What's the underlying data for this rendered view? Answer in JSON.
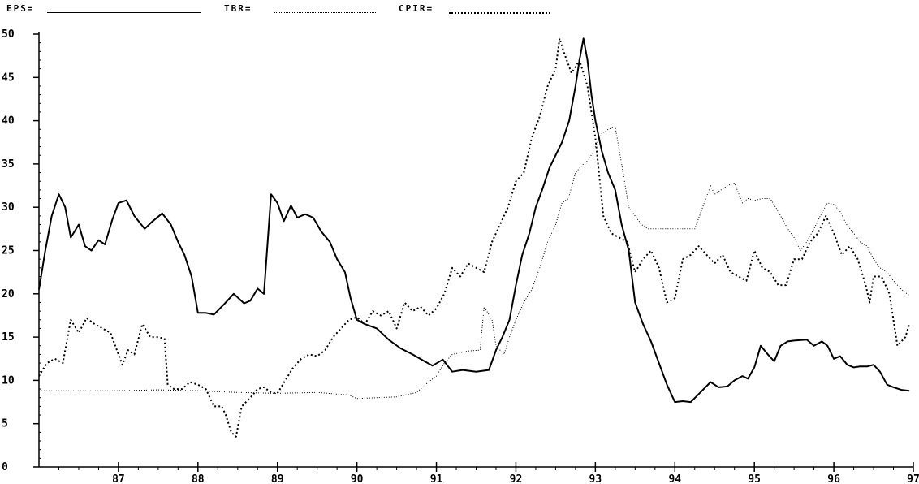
{
  "legend": {
    "eps": "EPS=",
    "tbr": "TBR=",
    "cpir": "CPIR="
  },
  "chart_data": {
    "type": "line",
    "xlim": [
      86,
      97
    ],
    "ylim": [
      0,
      50
    ],
    "x_ticks": [
      "87",
      "88",
      "89",
      "90",
      "91",
      "92",
      "93",
      "94",
      "95",
      "96",
      "97"
    ],
    "y_ticks": [
      "0",
      "5",
      "10",
      "15",
      "20",
      "25",
      "30",
      "35",
      "40",
      "45",
      "50"
    ],
    "series": [
      {
        "name": "EPS",
        "style": "solid",
        "points": [
          [
            86.0,
            20.5
          ],
          [
            86.08,
            25
          ],
          [
            86.16,
            29
          ],
          [
            86.25,
            31.5
          ],
          [
            86.33,
            30
          ],
          [
            86.4,
            26.5
          ],
          [
            86.5,
            28
          ],
          [
            86.58,
            25.5
          ],
          [
            86.66,
            25
          ],
          [
            86.75,
            26.2
          ],
          [
            86.83,
            25.7
          ],
          [
            86.92,
            28.5
          ],
          [
            87.0,
            30.5
          ],
          [
            87.1,
            30.8
          ],
          [
            87.2,
            29
          ],
          [
            87.33,
            27.5
          ],
          [
            87.42,
            28.3
          ],
          [
            87.55,
            29.3
          ],
          [
            87.66,
            28
          ],
          [
            87.75,
            26
          ],
          [
            87.83,
            24.5
          ],
          [
            87.92,
            22
          ],
          [
            88.0,
            17.8
          ],
          [
            88.1,
            17.8
          ],
          [
            88.2,
            17.6
          ],
          [
            88.33,
            18.8
          ],
          [
            88.45,
            20
          ],
          [
            88.58,
            18.9
          ],
          [
            88.66,
            19.2
          ],
          [
            88.75,
            20.6
          ],
          [
            88.83,
            20
          ],
          [
            88.92,
            31.5
          ],
          [
            89.0,
            30.5
          ],
          [
            89.08,
            28.4
          ],
          [
            89.17,
            30.2
          ],
          [
            89.25,
            28.8
          ],
          [
            89.35,
            29.2
          ],
          [
            89.45,
            28.8
          ],
          [
            89.55,
            27.2
          ],
          [
            89.66,
            26
          ],
          [
            89.75,
            24
          ],
          [
            89.85,
            22.5
          ],
          [
            89.92,
            19.5
          ],
          [
            90.0,
            17
          ],
          [
            90.1,
            16.5
          ],
          [
            90.25,
            16
          ],
          [
            90.4,
            14.7
          ],
          [
            90.55,
            13.7
          ],
          [
            90.7,
            13
          ],
          [
            90.85,
            12.2
          ],
          [
            90.95,
            11.7
          ],
          [
            91.08,
            12.4
          ],
          [
            91.2,
            11
          ],
          [
            91.33,
            11.2
          ],
          [
            91.5,
            11
          ],
          [
            91.66,
            11.2
          ],
          [
            91.75,
            13.5
          ],
          [
            91.83,
            15
          ],
          [
            91.92,
            17
          ],
          [
            92.0,
            21
          ],
          [
            92.08,
            24.5
          ],
          [
            92.17,
            27
          ],
          [
            92.25,
            30
          ],
          [
            92.33,
            32
          ],
          [
            92.42,
            34.5
          ],
          [
            92.5,
            36
          ],
          [
            92.58,
            37.5
          ],
          [
            92.67,
            40
          ],
          [
            92.75,
            44
          ],
          [
            92.8,
            47
          ],
          [
            92.85,
            49.5
          ],
          [
            92.9,
            47
          ],
          [
            92.95,
            43
          ],
          [
            93.0,
            40
          ],
          [
            93.08,
            36.5
          ],
          [
            93.16,
            34
          ],
          [
            93.25,
            32
          ],
          [
            93.33,
            28
          ],
          [
            93.42,
            25
          ],
          [
            93.5,
            19
          ],
          [
            93.6,
            16.5
          ],
          [
            93.7,
            14.5
          ],
          [
            93.8,
            12
          ],
          [
            93.9,
            9.5
          ],
          [
            94.0,
            7.5
          ],
          [
            94.1,
            7.6
          ],
          [
            94.2,
            7.5
          ],
          [
            94.33,
            8.7
          ],
          [
            94.45,
            9.8
          ],
          [
            94.55,
            9.2
          ],
          [
            94.66,
            9.3
          ],
          [
            94.75,
            10
          ],
          [
            94.85,
            10.5
          ],
          [
            94.92,
            10.2
          ],
          [
            95.0,
            11.5
          ],
          [
            95.08,
            14
          ],
          [
            95.17,
            13
          ],
          [
            95.25,
            12.2
          ],
          [
            95.33,
            14
          ],
          [
            95.42,
            14.5
          ],
          [
            95.5,
            14.6
          ],
          [
            95.66,
            14.7
          ],
          [
            95.75,
            14
          ],
          [
            95.85,
            14.5
          ],
          [
            95.92,
            14
          ],
          [
            96.0,
            12.5
          ],
          [
            96.08,
            12.8
          ],
          [
            96.17,
            11.8
          ],
          [
            96.25,
            11.5
          ],
          [
            96.33,
            11.6
          ],
          [
            96.42,
            11.6
          ],
          [
            96.5,
            11.8
          ],
          [
            96.58,
            11
          ],
          [
            96.67,
            9.5
          ],
          [
            96.75,
            9.2
          ],
          [
            96.85,
            8.9
          ],
          [
            96.95,
            8.8
          ]
        ]
      },
      {
        "name": "TBR",
        "style": "fine-dotted",
        "points": [
          [
            86.0,
            8.8
          ],
          [
            86.5,
            8.8
          ],
          [
            87.0,
            8.8
          ],
          [
            87.5,
            8.9
          ],
          [
            88.0,
            8.8
          ],
          [
            88.5,
            8.6
          ],
          [
            89.0,
            8.5
          ],
          [
            89.5,
            8.6
          ],
          [
            89.9,
            8.3
          ],
          [
            90.0,
            7.9
          ],
          [
            90.5,
            8.1
          ],
          [
            90.75,
            8.6
          ],
          [
            90.9,
            9.8
          ],
          [
            91.0,
            10.5
          ],
          [
            91.1,
            12
          ],
          [
            91.2,
            13
          ],
          [
            91.4,
            13.4
          ],
          [
            91.55,
            13.5
          ],
          [
            91.6,
            18.5
          ],
          [
            91.7,
            17
          ],
          [
            91.75,
            14
          ],
          [
            91.85,
            13
          ],
          [
            91.92,
            15
          ],
          [
            92.0,
            17
          ],
          [
            92.1,
            19
          ],
          [
            92.2,
            20.5
          ],
          [
            92.3,
            23
          ],
          [
            92.4,
            26
          ],
          [
            92.5,
            28
          ],
          [
            92.58,
            30.5
          ],
          [
            92.66,
            31
          ],
          [
            92.75,
            34
          ],
          [
            92.85,
            35
          ],
          [
            92.92,
            35.5
          ],
          [
            93.0,
            37
          ],
          [
            93.08,
            38.5
          ],
          [
            93.16,
            39
          ],
          [
            93.25,
            39.3
          ],
          [
            93.33,
            35
          ],
          [
            93.42,
            30
          ],
          [
            93.5,
            29
          ],
          [
            93.58,
            28
          ],
          [
            93.66,
            27.5
          ],
          [
            93.75,
            27.5
          ],
          [
            94.0,
            27.5
          ],
          [
            94.25,
            27.5
          ],
          [
            94.35,
            30
          ],
          [
            94.45,
            32.5
          ],
          [
            94.5,
            31.5
          ],
          [
            94.58,
            32
          ],
          [
            94.66,
            32.5
          ],
          [
            94.75,
            32.8
          ],
          [
            94.85,
            30.5
          ],
          [
            94.92,
            31
          ],
          [
            95.0,
            30.8
          ],
          [
            95.1,
            31
          ],
          [
            95.2,
            31
          ],
          [
            95.3,
            29.5
          ],
          [
            95.42,
            27.5
          ],
          [
            95.5,
            26.5
          ],
          [
            95.58,
            25
          ],
          [
            95.66,
            26
          ],
          [
            95.75,
            27.5
          ],
          [
            95.83,
            29
          ],
          [
            95.92,
            30.5
          ],
          [
            96.0,
            30.3
          ],
          [
            96.08,
            29.5
          ],
          [
            96.16,
            28
          ],
          [
            96.25,
            27
          ],
          [
            96.33,
            26
          ],
          [
            96.42,
            25.5
          ],
          [
            96.5,
            24
          ],
          [
            96.58,
            23
          ],
          [
            96.67,
            22.5
          ],
          [
            96.75,
            21.5
          ],
          [
            96.85,
            20.5
          ],
          [
            96.95,
            19.8
          ]
        ]
      },
      {
        "name": "CPIR",
        "style": "coarse-dotted",
        "points": [
          [
            86.0,
            10.5
          ],
          [
            86.1,
            12
          ],
          [
            86.2,
            12.5
          ],
          [
            86.3,
            12
          ],
          [
            86.4,
            17
          ],
          [
            86.5,
            15.5
          ],
          [
            86.6,
            17.2
          ],
          [
            86.7,
            16.5
          ],
          [
            86.8,
            16
          ],
          [
            86.9,
            15.5
          ],
          [
            87.0,
            13
          ],
          [
            87.05,
            11.8
          ],
          [
            87.12,
            13.5
          ],
          [
            87.2,
            13
          ],
          [
            87.3,
            16.5
          ],
          [
            87.4,
            15
          ],
          [
            87.5,
            15
          ],
          [
            87.58,
            14.8
          ],
          [
            87.62,
            9.5
          ],
          [
            87.7,
            9
          ],
          [
            87.8,
            9
          ],
          [
            87.9,
            9.8
          ],
          [
            88.0,
            9.5
          ],
          [
            88.1,
            9
          ],
          [
            88.2,
            7
          ],
          [
            88.3,
            7
          ],
          [
            88.35,
            6
          ],
          [
            88.42,
            4
          ],
          [
            88.48,
            3.5
          ],
          [
            88.55,
            7
          ],
          [
            88.66,
            8
          ],
          [
            88.75,
            9
          ],
          [
            88.83,
            9.2
          ],
          [
            88.92,
            8.6
          ],
          [
            89.0,
            8.5
          ],
          [
            89.1,
            10
          ],
          [
            89.2,
            11.5
          ],
          [
            89.3,
            12.5
          ],
          [
            89.4,
            13
          ],
          [
            89.5,
            12.8
          ],
          [
            89.6,
            13.5
          ],
          [
            89.7,
            15
          ],
          [
            89.8,
            16
          ],
          [
            89.9,
            17
          ],
          [
            90.0,
            17.3
          ],
          [
            90.1,
            16.5
          ],
          [
            90.2,
            18
          ],
          [
            90.3,
            17.5
          ],
          [
            90.4,
            18
          ],
          [
            90.5,
            16
          ],
          [
            90.6,
            19
          ],
          [
            90.7,
            18
          ],
          [
            90.8,
            18.5
          ],
          [
            90.9,
            17.5
          ],
          [
            91.0,
            18.3
          ],
          [
            91.1,
            20
          ],
          [
            91.2,
            23
          ],
          [
            91.3,
            22
          ],
          [
            91.4,
            23.5
          ],
          [
            91.5,
            23
          ],
          [
            91.6,
            22.5
          ],
          [
            91.7,
            26
          ],
          [
            91.8,
            28
          ],
          [
            91.9,
            30
          ],
          [
            92.0,
            33
          ],
          [
            92.1,
            34
          ],
          [
            92.2,
            38
          ],
          [
            92.3,
            40.5
          ],
          [
            92.4,
            44
          ],
          [
            92.5,
            46
          ],
          [
            92.55,
            49.5
          ],
          [
            92.6,
            48
          ],
          [
            92.7,
            45.5
          ],
          [
            92.8,
            47
          ],
          [
            92.9,
            44
          ],
          [
            93.0,
            38
          ],
          [
            93.1,
            29
          ],
          [
            93.2,
            27
          ],
          [
            93.3,
            26.5
          ],
          [
            93.4,
            26
          ],
          [
            93.5,
            22.5
          ],
          [
            93.6,
            24
          ],
          [
            93.7,
            25
          ],
          [
            93.8,
            23
          ],
          [
            93.9,
            19
          ],
          [
            94.0,
            19.5
          ],
          [
            94.1,
            24
          ],
          [
            94.2,
            24.5
          ],
          [
            94.3,
            25.5
          ],
          [
            94.4,
            24.5
          ],
          [
            94.5,
            23.5
          ],
          [
            94.6,
            24.5
          ],
          [
            94.7,
            22.5
          ],
          [
            94.8,
            22
          ],
          [
            94.9,
            21.5
          ],
          [
            95.0,
            25
          ],
          [
            95.1,
            23
          ],
          [
            95.2,
            22.5
          ],
          [
            95.3,
            21
          ],
          [
            95.4,
            21
          ],
          [
            95.5,
            24
          ],
          [
            95.6,
            24
          ],
          [
            95.7,
            26
          ],
          [
            95.8,
            27
          ],
          [
            95.9,
            29
          ],
          [
            96.0,
            27
          ],
          [
            96.1,
            24.5
          ],
          [
            96.2,
            25.5
          ],
          [
            96.3,
            24
          ],
          [
            96.4,
            21
          ],
          [
            96.45,
            19
          ],
          [
            96.5,
            22
          ],
          [
            96.6,
            22
          ],
          [
            96.7,
            20
          ],
          [
            96.8,
            14
          ],
          [
            96.9,
            15
          ],
          [
            96.95,
            16.5
          ]
        ]
      }
    ]
  }
}
